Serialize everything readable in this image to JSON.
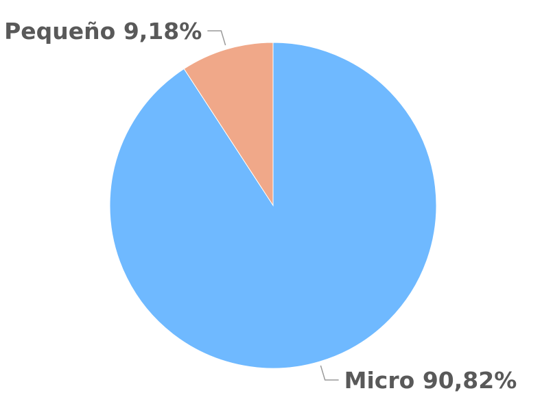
{
  "chart_data": {
    "type": "pie",
    "categories": [
      "Micro",
      "Pequeño"
    ],
    "values": [
      90.82,
      9.18
    ],
    "value_labels": [
      "90,82%",
      "9,18%"
    ],
    "colors": [
      "#6fb9ff",
      "#f0a889"
    ]
  }
}
